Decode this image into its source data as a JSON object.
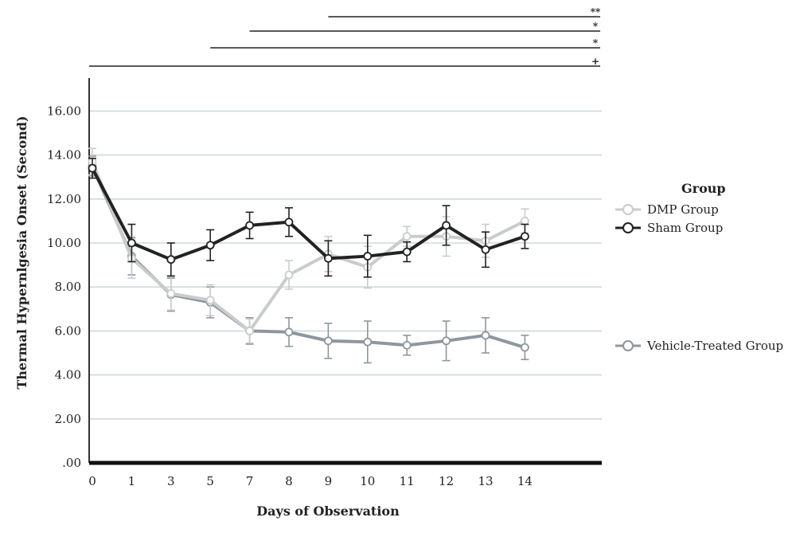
{
  "chart_data": {
    "type": "line",
    "title": "",
    "xlabel": "Days of Observation",
    "ylabel": "Thermal Hypernlgesia Onset (Second)",
    "categories": [
      "0",
      "1",
      "3",
      "5",
      "7",
      "8",
      "9",
      "10",
      "11",
      "12",
      "13",
      "14"
    ],
    "y_ticks": [
      ".00",
      "2.00",
      "4.00",
      "6.00",
      "8.00",
      "10.00",
      "12.00",
      "14.00",
      "16.00"
    ],
    "ylim": [
      0,
      17.5
    ],
    "grid": true,
    "legend": {
      "title": "Group",
      "placement": "right"
    },
    "series": [
      {
        "name": "DMP Group",
        "color": "#c9cccb",
        "values": [
          13.7,
          9.3,
          7.7,
          7.4,
          6.0,
          8.55,
          9.5,
          8.9,
          10.3,
          10.3,
          10.1,
          11.0
        ],
        "errors": [
          0.6,
          0.9,
          0.75,
          0.7,
          0.55,
          0.65,
          0.8,
          0.95,
          0.45,
          0.9,
          0.75,
          0.55
        ]
      },
      {
        "name": "Sham Group",
        "color": "#222222",
        "values": [
          13.4,
          10.0,
          9.25,
          9.9,
          10.8,
          10.95,
          9.3,
          9.4,
          9.6,
          10.8,
          9.7,
          10.3
        ],
        "errors": [
          0.45,
          0.85,
          0.75,
          0.7,
          0.6,
          0.65,
          0.8,
          0.95,
          0.45,
          0.9,
          0.8,
          0.55
        ]
      },
      {
        "name": "Vehicle-Treated Group",
        "color": "#8e979d",
        "values": [
          13.5,
          9.4,
          7.65,
          7.3,
          6.0,
          5.95,
          5.55,
          5.5,
          5.35,
          5.55,
          5.8,
          5.25
        ],
        "errors": [
          0.45,
          0.85,
          0.75,
          0.7,
          0.6,
          0.65,
          0.8,
          0.95,
          0.45,
          0.9,
          0.8,
          0.55
        ]
      }
    ],
    "significance": [
      {
        "from": "9",
        "mark": "**"
      },
      {
        "from": "7",
        "mark": "*"
      },
      {
        "from": "5",
        "mark": "*"
      },
      {
        "from": "0",
        "mark": "+"
      }
    ]
  }
}
